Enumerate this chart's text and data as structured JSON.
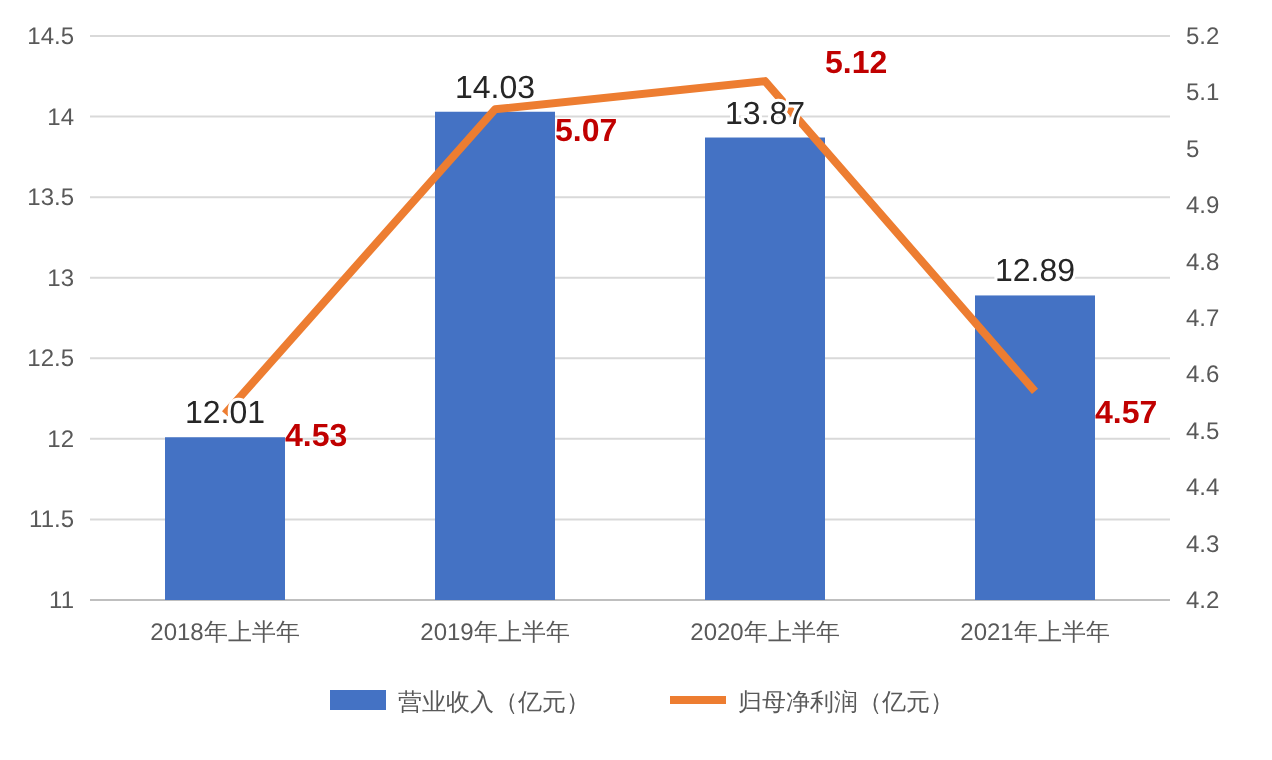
{
  "chart_data": {
    "type": "bar",
    "categories": [
      "2018年上半年",
      "2019年上半年",
      "2020年上半年",
      "2021年上半年"
    ],
    "series": [
      {
        "name": "营业收入（亿元）",
        "color": "#4472c4",
        "values": [
          12.01,
          14.03,
          13.87,
          12.89
        ]
      },
      {
        "name": "归母净利润（亿元）",
        "type": "line",
        "axis": "y2",
        "color": "#ed7d31",
        "values": [
          4.53,
          5.07,
          5.12,
          4.57
        ]
      }
    ],
    "ylim": [
      11,
      14.5
    ],
    "yticks": [
      11,
      11.5,
      12,
      12.5,
      13,
      13.5,
      14,
      14.5
    ],
    "y2lim": [
      4.2,
      5.2
    ],
    "y2ticks": [
      4.2,
      4.3,
      4.4,
      4.5,
      4.6,
      4.7,
      4.8,
      4.9,
      5,
      5.1,
      5.2
    ],
    "grid": "y",
    "legend": "bottom",
    "data_labels": true,
    "marker": "none",
    "line_style": "solid"
  }
}
